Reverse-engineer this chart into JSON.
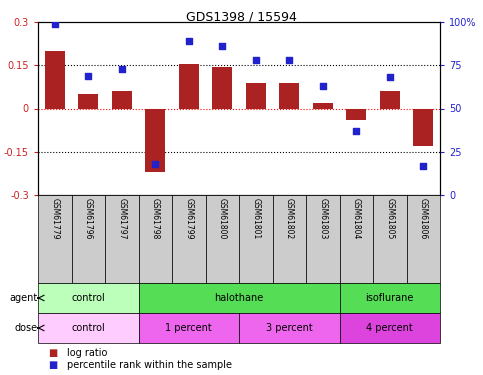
{
  "title": "GDS1398 / 15594",
  "samples": [
    "GSM61779",
    "GSM61796",
    "GSM61797",
    "GSM61798",
    "GSM61799",
    "GSM61800",
    "GSM61801",
    "GSM61802",
    "GSM61803",
    "GSM61804",
    "GSM61805",
    "GSM61806"
  ],
  "log_ratio": [
    0.2,
    0.05,
    0.06,
    -0.22,
    0.155,
    0.145,
    0.09,
    0.09,
    0.02,
    -0.04,
    0.06,
    -0.13
  ],
  "percentile": [
    99,
    69,
    73,
    18,
    89,
    86,
    78,
    78,
    63,
    37,
    68,
    17
  ],
  "ylim_left": [
    -0.3,
    0.3
  ],
  "ylim_right": [
    0,
    100
  ],
  "yticks_left": [
    -0.3,
    -0.15,
    0,
    0.15,
    0.3
  ],
  "yticks_right": [
    0,
    25,
    50,
    75,
    100
  ],
  "ytick_labels_left": [
    "-0.3",
    "-0.15",
    "0",
    "0.15",
    "0.3"
  ],
  "ytick_labels_right": [
    "0",
    "25",
    "50",
    "75",
    "100%"
  ],
  "hlines": [
    0.15,
    0.0,
    -0.15
  ],
  "bar_color": "#aa2222",
  "dot_color": "#2222cc",
  "left_tick_color": "#cc2222",
  "right_tick_color": "#2222cc",
  "agent_groups": [
    {
      "label": "control",
      "start": 0,
      "end": 3,
      "color": "#bbffbb"
    },
    {
      "label": "halothane",
      "start": 3,
      "end": 9,
      "color": "#55dd55"
    },
    {
      "label": "isoflurane",
      "start": 9,
      "end": 12,
      "color": "#55dd55"
    }
  ],
  "dose_groups": [
    {
      "label": "control",
      "start": 0,
      "end": 3,
      "color": "#ffccff"
    },
    {
      "label": "1 percent",
      "start": 3,
      "end": 6,
      "color": "#ee66ee"
    },
    {
      "label": "3 percent",
      "start": 6,
      "end": 9,
      "color": "#ee66ee"
    },
    {
      "label": "4 percent",
      "start": 9,
      "end": 12,
      "color": "#dd44dd"
    }
  ],
  "legend_bar_label": "log ratio",
  "legend_dot_label": "percentile rank within the sample",
  "agent_label": "agent",
  "dose_label": "dose",
  "n_samples": 12,
  "sample_box_color": "#cccccc",
  "fig_bg": "#ffffff"
}
